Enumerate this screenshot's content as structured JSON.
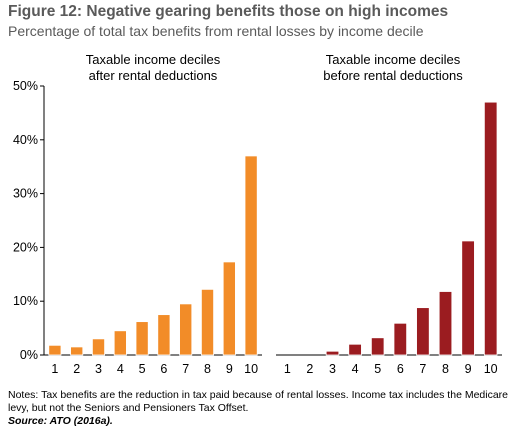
{
  "figure": {
    "title": "Figure 12: Negative gearing benefits those on high incomes",
    "subtitle": "Percentage of total tax benefits from rental losses by income decile"
  },
  "notes": {
    "text": "Notes: Tax benefits are the reduction in tax paid because of rental losses. Income tax includes the Medicare levy, but not the Seniors and Pensioners Tax Offset.",
    "source": "Source: ATO (2016a)."
  },
  "chart_data": [
    {
      "type": "bar",
      "panel_title_lines": [
        "Taxable income deciles",
        "after rental deductions"
      ],
      "categories": [
        "1",
        "2",
        "3",
        "4",
        "5",
        "6",
        "7",
        "8",
        "9",
        "10"
      ],
      "values": [
        1.8,
        1.5,
        3.0,
        4.5,
        6.2,
        7.5,
        9.5,
        12.2,
        17.3,
        37.0
      ],
      "color": "#f28c28",
      "ylim": [
        0,
        50
      ],
      "yticks": [
        "0%",
        "10%",
        "20%",
        "30%",
        "40%",
        "50%"
      ],
      "xlabel": "",
      "ylabel": ""
    },
    {
      "type": "bar",
      "panel_title_lines": [
        "Taxable income deciles",
        "before rental deductions"
      ],
      "categories": [
        "1",
        "2",
        "3",
        "4",
        "5",
        "6",
        "7",
        "8",
        "9",
        "10"
      ],
      "values": [
        0,
        0,
        0.7,
        2.0,
        3.2,
        5.9,
        8.8,
        11.8,
        21.2,
        47.0
      ],
      "color": "#9b1c20",
      "ylim": [
        0,
        50
      ],
      "xlabel": "",
      "ylabel": ""
    }
  ]
}
